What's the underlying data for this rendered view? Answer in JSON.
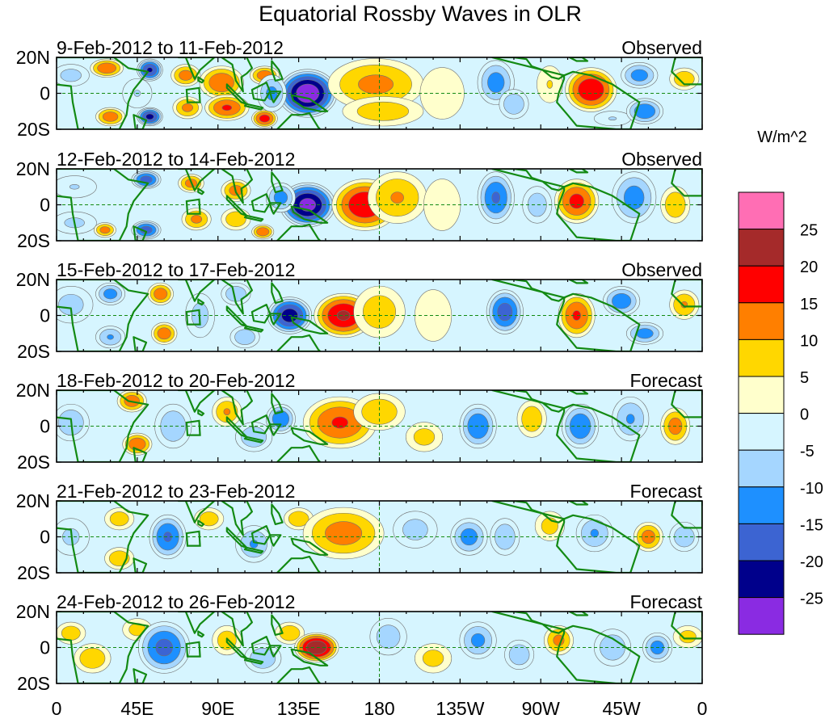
{
  "chart_data": {
    "type": "heatmap",
    "title": "Equatorial Rossby Waves in OLR",
    "x_tick_labels": [
      "0",
      "45E",
      "90E",
      "135E",
      "180",
      "135W",
      "90W",
      "45W",
      "0"
    ],
    "x_tick_lon": [
      0,
      45,
      90,
      135,
      180,
      225,
      270,
      315,
      360
    ],
    "y_tick_labels": [
      "20N",
      "0",
      "20S"
    ],
    "y_tick_lat": [
      20,
      0,
      -20
    ],
    "xlim": [
      0,
      360
    ],
    "ylim": [
      -20,
      20
    ],
    "colorbar": {
      "units": "W/m^2",
      "tick_labels": [
        "25",
        "20",
        "15",
        "10",
        "5",
        "0",
        "-5",
        "-10",
        "-15",
        "-20",
        "-25"
      ],
      "levels": [
        25,
        20,
        15,
        10,
        5,
        0,
        -5,
        -10,
        -15,
        -20,
        -25
      ],
      "colors": [
        "#ff6eb4",
        "#a52a2a",
        "#ff0000",
        "#ff7f00",
        "#ffd700",
        "#ffffcc",
        "#d6f5ff",
        "#a5d6ff",
        "#1e90ff",
        "#3c64d2",
        "#00008b",
        "#8a2be2"
      ]
    },
    "panels": [
      {
        "period": "9-Feb-2012 to 11-Feb-2012",
        "status": "Observed",
        "anomalies": [
          {
            "lon": 8,
            "lat": 10,
            "v": -7,
            "rx": 10,
            "ry": 6
          },
          {
            "lon": 28,
            "lat": 14,
            "v": 14,
            "rx": 9,
            "ry": 5
          },
          {
            "lon": 30,
            "lat": -13,
            "v": 13,
            "rx": 8,
            "ry": 5
          },
          {
            "lon": 52,
            "lat": 13,
            "v": -20,
            "rx": 7,
            "ry": 6
          },
          {
            "lon": 52,
            "lat": -13,
            "v": -21,
            "rx": 7,
            "ry": 5
          },
          {
            "lon": 45,
            "lat": 0,
            "v": -5,
            "rx": 8,
            "ry": 8
          },
          {
            "lon": 72,
            "lat": 10,
            "v": 12,
            "rx": 8,
            "ry": 6
          },
          {
            "lon": 73,
            "lat": -8,
            "v": 11,
            "rx": 8,
            "ry": 6
          },
          {
            "lon": 92,
            "lat": 6,
            "v": 14,
            "rx": 12,
            "ry": 9
          },
          {
            "lon": 95,
            "lat": -8,
            "v": 15,
            "rx": 12,
            "ry": 7
          },
          {
            "lon": 116,
            "lat": 10,
            "v": 13,
            "rx": 8,
            "ry": 5
          },
          {
            "lon": 116,
            "lat": -14,
            "v": 17,
            "rx": 7,
            "ry": 5
          },
          {
            "lon": 140,
            "lat": 0,
            "v": -28,
            "rx": 16,
            "ry": 13
          },
          {
            "lon": 120,
            "lat": 0,
            "v": -11,
            "rx": 8,
            "ry": 10
          },
          {
            "lon": 178,
            "lat": 5,
            "v": 11,
            "rx": 26,
            "ry": 14
          },
          {
            "lon": 182,
            "lat": -10,
            "v": 8,
            "rx": 22,
            "ry": 8
          },
          {
            "lon": 215,
            "lat": 0,
            "v": 4,
            "rx": 12,
            "ry": 14
          },
          {
            "lon": 245,
            "lat": 6,
            "v": -12,
            "rx": 10,
            "ry": 12
          },
          {
            "lon": 255,
            "lat": -6,
            "v": -9,
            "rx": 8,
            "ry": 8
          },
          {
            "lon": 275,
            "lat": 5,
            "v": 5,
            "rx": 7,
            "ry": 10
          },
          {
            "lon": 298,
            "lat": 2,
            "v": 19,
            "rx": 14,
            "ry": 12
          },
          {
            "lon": 310,
            "lat": -14,
            "v": -5,
            "rx": 10,
            "ry": 4
          },
          {
            "lon": 325,
            "lat": 10,
            "v": -12,
            "rx": 10,
            "ry": 7
          },
          {
            "lon": 328,
            "lat": -10,
            "v": -14,
            "rx": 10,
            "ry": 7
          },
          {
            "lon": 350,
            "lat": 8,
            "v": 9,
            "rx": 8,
            "ry": 6
          }
        ]
      },
      {
        "period": "12-Feb-2012 to 14-Feb-2012",
        "status": "Observed",
        "anomalies": [
          {
            "lon": 10,
            "lat": 10,
            "v": -5,
            "rx": 12,
            "ry": 6
          },
          {
            "lon": 10,
            "lat": -10,
            "v": -6,
            "rx": 12,
            "ry": 6
          },
          {
            "lon": 27,
            "lat": -14,
            "v": 12,
            "rx": 6,
            "ry": 4
          },
          {
            "lon": 50,
            "lat": 14,
            "v": -17,
            "rx": 8,
            "ry": 5
          },
          {
            "lon": 50,
            "lat": -14,
            "v": -17,
            "rx": 8,
            "ry": 5
          },
          {
            "lon": 75,
            "lat": 12,
            "v": 12,
            "rx": 7,
            "ry": 5
          },
          {
            "lon": 78,
            "lat": -8,
            "v": 11,
            "rx": 8,
            "ry": 6
          },
          {
            "lon": 100,
            "lat": 8,
            "v": 12,
            "rx": 8,
            "ry": 6
          },
          {
            "lon": 100,
            "lat": -8,
            "v": 9,
            "rx": 8,
            "ry": 6
          },
          {
            "lon": 115,
            "lat": -15,
            "v": 14,
            "rx": 6,
            "ry": 4
          },
          {
            "lon": 140,
            "lat": 0,
            "v": -26,
            "rx": 15,
            "ry": 12
          },
          {
            "lon": 125,
            "lat": 4,
            "v": -12,
            "rx": 8,
            "ry": 8
          },
          {
            "lon": 172,
            "lat": 0,
            "v": 19,
            "rx": 18,
            "ry": 14
          },
          {
            "lon": 190,
            "lat": 4,
            "v": 10,
            "rx": 16,
            "ry": 14
          },
          {
            "lon": 215,
            "lat": 0,
            "v": 3,
            "rx": 10,
            "ry": 14
          },
          {
            "lon": 245,
            "lat": 4,
            "v": -15,
            "rx": 10,
            "ry": 14
          },
          {
            "lon": 268,
            "lat": 0,
            "v": -8,
            "rx": 8,
            "ry": 10
          },
          {
            "lon": 290,
            "lat": 2,
            "v": 16,
            "rx": 12,
            "ry": 12
          },
          {
            "lon": 322,
            "lat": 4,
            "v": -12,
            "rx": 12,
            "ry": 14
          },
          {
            "lon": 345,
            "lat": 0,
            "v": 9,
            "rx": 8,
            "ry": 10
          }
        ]
      },
      {
        "period": "15-Feb-2012 to 17-Feb-2012",
        "status": "Observed",
        "anomalies": [
          {
            "lon": 8,
            "lat": 6,
            "v": -7,
            "rx": 12,
            "ry": 10
          },
          {
            "lon": 30,
            "lat": 12,
            "v": -12,
            "rx": 8,
            "ry": 6
          },
          {
            "lon": 30,
            "lat": -12,
            "v": -10,
            "rx": 8,
            "ry": 6
          },
          {
            "lon": 58,
            "lat": 12,
            "v": 13,
            "rx": 7,
            "ry": 6
          },
          {
            "lon": 60,
            "lat": -10,
            "v": 13,
            "rx": 7,
            "ry": 6
          },
          {
            "lon": 80,
            "lat": 0,
            "v": -7,
            "rx": 8,
            "ry": 12
          },
          {
            "lon": 100,
            "lat": 12,
            "v": -9,
            "rx": 8,
            "ry": 6
          },
          {
            "lon": 105,
            "lat": -12,
            "v": -9,
            "rx": 8,
            "ry": 6
          },
          {
            "lon": 130,
            "lat": 0,
            "v": -22,
            "rx": 12,
            "ry": 10
          },
          {
            "lon": 160,
            "lat": 0,
            "v": 20,
            "rx": 16,
            "ry": 12
          },
          {
            "lon": 180,
            "lat": 2,
            "v": 8,
            "rx": 14,
            "ry": 14
          },
          {
            "lon": 210,
            "lat": 0,
            "v": 3,
            "rx": 10,
            "ry": 14
          },
          {
            "lon": 250,
            "lat": 2,
            "v": -17,
            "rx": 10,
            "ry": 12
          },
          {
            "lon": 290,
            "lat": 0,
            "v": 15,
            "rx": 10,
            "ry": 12
          },
          {
            "lon": 315,
            "lat": 8,
            "v": -13,
            "rx": 10,
            "ry": 8
          },
          {
            "lon": 328,
            "lat": -10,
            "v": -12,
            "rx": 10,
            "ry": 6
          },
          {
            "lon": 350,
            "lat": 6,
            "v": 10,
            "rx": 8,
            "ry": 8
          }
        ]
      },
      {
        "period": "18-Feb-2012 to 20-Feb-2012",
        "status": "Forecast",
        "anomalies": [
          {
            "lon": 8,
            "lat": 2,
            "v": -9,
            "rx": 10,
            "ry": 10
          },
          {
            "lon": 42,
            "lat": 14,
            "v": 13,
            "rx": 8,
            "ry": 6
          },
          {
            "lon": 45,
            "lat": -10,
            "v": 14,
            "rx": 8,
            "ry": 6
          },
          {
            "lon": 65,
            "lat": 0,
            "v": -9,
            "rx": 10,
            "ry": 12
          },
          {
            "lon": 95,
            "lat": 8,
            "v": 10,
            "rx": 8,
            "ry": 8
          },
          {
            "lon": 110,
            "lat": -6,
            "v": -9,
            "rx": 10,
            "ry": 8
          },
          {
            "lon": 125,
            "lat": 4,
            "v": -14,
            "rx": 8,
            "ry": 8
          },
          {
            "lon": 150,
            "lat": 0,
            "v": 26,
            "rx": 10,
            "ry": 6
          },
          {
            "lon": 158,
            "lat": 2,
            "v": 15,
            "rx": 20,
            "ry": 14
          },
          {
            "lon": 180,
            "lat": 8,
            "v": 9,
            "rx": 14,
            "ry": 10
          },
          {
            "lon": 205,
            "lat": -6,
            "v": 7,
            "rx": 10,
            "ry": 8
          },
          {
            "lon": 235,
            "lat": 0,
            "v": -14,
            "rx": 10,
            "ry": 12
          },
          {
            "lon": 265,
            "lat": 4,
            "v": 9,
            "rx": 8,
            "ry": 10
          },
          {
            "lon": 292,
            "lat": 0,
            "v": -14,
            "rx": 10,
            "ry": 12
          },
          {
            "lon": 320,
            "lat": 4,
            "v": -10,
            "rx": 10,
            "ry": 12
          },
          {
            "lon": 345,
            "lat": 0,
            "v": 12,
            "rx": 8,
            "ry": 10
          }
        ]
      },
      {
        "period": "21-Feb-2012 to 23-Feb-2012",
        "status": "Forecast",
        "anomalies": [
          {
            "lon": 8,
            "lat": 0,
            "v": -6,
            "rx": 10,
            "ry": 10
          },
          {
            "lon": 35,
            "lat": 10,
            "v": 8,
            "rx": 8,
            "ry": 6
          },
          {
            "lon": 35,
            "lat": -12,
            "v": 9,
            "rx": 8,
            "ry": 6
          },
          {
            "lon": 62,
            "lat": 0,
            "v": -15,
            "rx": 10,
            "ry": 12
          },
          {
            "lon": 85,
            "lat": 10,
            "v": 8,
            "rx": 8,
            "ry": 6
          },
          {
            "lon": 110,
            "lat": -4,
            "v": -10,
            "rx": 10,
            "ry": 10
          },
          {
            "lon": 135,
            "lat": 10,
            "v": 9,
            "rx": 8,
            "ry": 6
          },
          {
            "lon": 150,
            "lat": 0,
            "v": 24,
            "rx": 12,
            "ry": 8
          },
          {
            "lon": 160,
            "lat": 2,
            "v": 12,
            "rx": 22,
            "ry": 14
          },
          {
            "lon": 200,
            "lat": 4,
            "v": -7,
            "rx": 12,
            "ry": 10
          },
          {
            "lon": 230,
            "lat": 0,
            "v": -12,
            "rx": 10,
            "ry": 10
          },
          {
            "lon": 250,
            "lat": 0,
            "v": -9,
            "rx": 8,
            "ry": 10
          },
          {
            "lon": 275,
            "lat": 6,
            "v": 7,
            "rx": 8,
            "ry": 8
          },
          {
            "lon": 300,
            "lat": 2,
            "v": -10,
            "rx": 10,
            "ry": 10
          },
          {
            "lon": 330,
            "lat": 0,
            "v": 12,
            "rx": 8,
            "ry": 8
          },
          {
            "lon": 350,
            "lat": 0,
            "v": -9,
            "rx": 8,
            "ry": 8
          }
        ]
      },
      {
        "period": "24-Feb-2012 to 26-Feb-2012",
        "status": "Forecast",
        "anomalies": [
          {
            "lon": 8,
            "lat": 8,
            "v": 8,
            "rx": 8,
            "ry": 6
          },
          {
            "lon": 20,
            "lat": -6,
            "v": 9,
            "rx": 10,
            "ry": 8
          },
          {
            "lon": 45,
            "lat": 10,
            "v": 7,
            "rx": 8,
            "ry": 6
          },
          {
            "lon": 60,
            "lat": 0,
            "v": -16,
            "rx": 14,
            "ry": 14
          },
          {
            "lon": 95,
            "lat": 4,
            "v": 8,
            "rx": 8,
            "ry": 8
          },
          {
            "lon": 115,
            "lat": -6,
            "v": -9,
            "rx": 10,
            "ry": 8
          },
          {
            "lon": 130,
            "lat": 8,
            "v": 9,
            "rx": 8,
            "ry": 6
          },
          {
            "lon": 145,
            "lat": 0,
            "v": 24,
            "rx": 12,
            "ry": 8
          },
          {
            "lon": 185,
            "lat": 6,
            "v": -8,
            "rx": 10,
            "ry": 10
          },
          {
            "lon": 210,
            "lat": -6,
            "v": 7,
            "rx": 10,
            "ry": 8
          },
          {
            "lon": 235,
            "lat": 4,
            "v": -11,
            "rx": 10,
            "ry": 10
          },
          {
            "lon": 258,
            "lat": -4,
            "v": -9,
            "rx": 8,
            "ry": 8
          },
          {
            "lon": 280,
            "lat": 4,
            "v": 11,
            "rx": 8,
            "ry": 8
          },
          {
            "lon": 310,
            "lat": 0,
            "v": -9,
            "rx": 10,
            "ry": 10
          },
          {
            "lon": 335,
            "lat": 0,
            "v": -12,
            "rx": 8,
            "ry": 8
          },
          {
            "lon": 352,
            "lat": 6,
            "v": 7,
            "rx": 8,
            "ry": 6
          }
        ]
      }
    ]
  }
}
